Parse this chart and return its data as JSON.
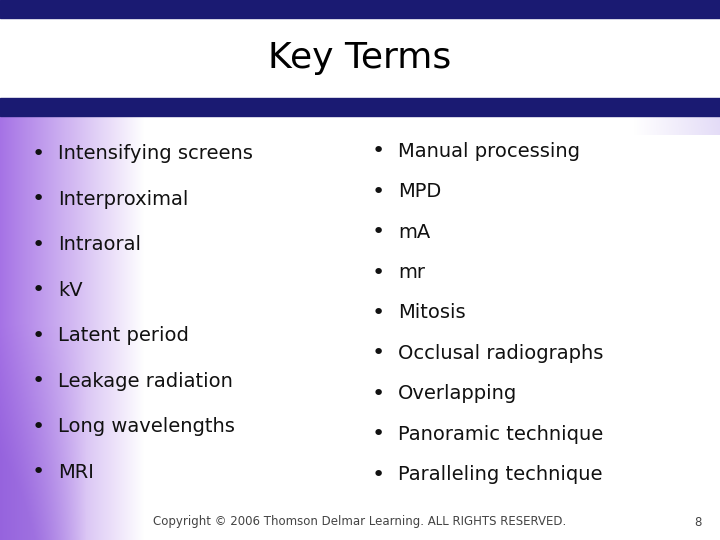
{
  "title": "Key Terms",
  "left_items": [
    "Intensifying screens",
    "Interproximal",
    "Intraoral",
    "kV",
    "Latent period",
    "Leakage radiation",
    "Long wavelengths",
    "MRI"
  ],
  "right_items": [
    "Manual processing",
    "MPD",
    "mA",
    "mr",
    "Mitosis",
    "Occlusal radiographs",
    "Overlapping",
    "Panoramic technique",
    "Paralleling technique"
  ],
  "footer": "Copyright © 2006 Thomson Delmar Learning. ALL RIGHTS RESERVED.",
  "page_number": "8",
  "title_fontsize": 26,
  "body_fontsize": 14,
  "footer_fontsize": 8.5,
  "title_color": "#000000",
  "body_color": "#111111",
  "footer_color": "#444444",
  "bg_color": "#ffffff",
  "navy_color": "#1a1a72",
  "purple_edge": "#9966cc"
}
